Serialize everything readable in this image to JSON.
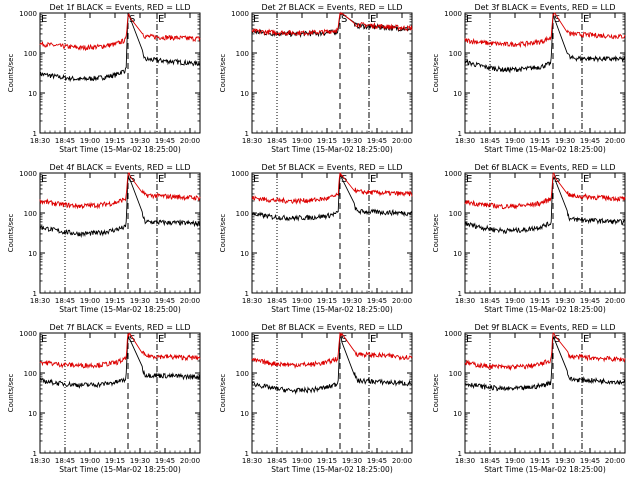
{
  "figure": {
    "background": "#ffffff",
    "colors": {
      "events": "#000000",
      "lld": "#dd0000",
      "axes": "#000000"
    }
  },
  "chart_data": {
    "type": "line",
    "panel_type": "line",
    "yscale": "log",
    "ylim": [
      1,
      1000
    ],
    "yticks": [
      "1",
      "10",
      "100",
      "1000"
    ],
    "xlim": [
      18.5,
      20.1
    ],
    "xticks": [
      18.5,
      18.75,
      19.0,
      19.25,
      19.5,
      19.75,
      20.0
    ],
    "xtick_labels": [
      "18:30",
      "18:45",
      "19:00",
      "19:15",
      "19:30",
      "19:45",
      "20:00"
    ],
    "xlabel": "Start Time (15-Mar-02 18:25:00)",
    "ylabel": "Counts/sec",
    "markers": [
      {
        "label": "E",
        "x": 18.5,
        "style": "dotted"
      },
      {
        "label": "",
        "x": 18.75,
        "style": "dotted"
      },
      {
        "label": "S",
        "x": 19.38,
        "style": "dashed"
      },
      {
        "label": "E",
        "x": 19.67,
        "style": "dashdot"
      }
    ],
    "legend_note": "BLACK = Events, RED = LLD",
    "panels": [
      {
        "title": "Det 1f BLACK = Events, RED = LLD",
        "series": [
          {
            "name": "Events",
            "color": "#000000",
            "levels": [
              30,
              25,
              22,
              24,
              28,
              38,
              900,
              70,
              55
            ]
          },
          {
            "name": "LLD",
            "color": "#dd0000",
            "levels": [
              170,
              150,
              135,
              145,
              165,
              215,
              1000,
              260,
              230
            ]
          }
        ]
      },
      {
        "title": "Det 2f BLACK = Events, RED = LLD",
        "series": [
          {
            "name": "Events",
            "color": "#000000",
            "levels": [
              340,
              310,
              300,
              305,
              320,
              350,
              1000,
              480,
              400
            ]
          },
          {
            "name": "LLD",
            "color": "#dd0000",
            "levels": [
              350,
              330,
              320,
              325,
              340,
              380,
              1000,
              520,
              420
            ]
          }
        ]
      },
      {
        "title": "Det 3f BLACK = Events, RED = LLD",
        "series": [
          {
            "name": "Events",
            "color": "#000000",
            "levels": [
              60,
              45,
              38,
              40,
              45,
              55,
              900,
              75,
              70
            ]
          },
          {
            "name": "LLD",
            "color": "#dd0000",
            "levels": [
              210,
              180,
              165,
              170,
              190,
              240,
              1000,
              300,
              260
            ]
          }
        ]
      },
      {
        "title": "Det 4f BLACK = Events, RED = LLD",
        "series": [
          {
            "name": "Events",
            "color": "#000000",
            "levels": [
              45,
              35,
              30,
              32,
              38,
              45,
              900,
              60,
              55
            ]
          },
          {
            "name": "LLD",
            "color": "#dd0000",
            "levels": [
              200,
              165,
              150,
              160,
              180,
              230,
              1000,
              280,
              240
            ]
          }
        ]
      },
      {
        "title": "Det 5f BLACK = Events, RED = LLD",
        "series": [
          {
            "name": "Events",
            "color": "#000000",
            "levels": [
              95,
              80,
              75,
              78,
              85,
              100,
              900,
              110,
              100
            ]
          },
          {
            "name": "LLD",
            "color": "#dd0000",
            "levels": [
              240,
              210,
              200,
              210,
              230,
              280,
              1000,
              340,
              300
            ]
          }
        ]
      },
      {
        "title": "Det 6f BLACK = Events, RED = LLD",
        "series": [
          {
            "name": "Events",
            "color": "#000000",
            "levels": [
              55,
              42,
              36,
              38,
              45,
              55,
              900,
              70,
              60
            ]
          },
          {
            "name": "LLD",
            "color": "#dd0000",
            "levels": [
              190,
              160,
              145,
              155,
              175,
              225,
              1000,
              270,
              230
            ]
          }
        ]
      },
      {
        "title": "Det 7f BLACK = Events, RED = LLD",
        "series": [
          {
            "name": "Events",
            "color": "#000000",
            "levels": [
              65,
              55,
              50,
              52,
              58,
              70,
              900,
              90,
              80
            ]
          },
          {
            "name": "LLD",
            "color": "#dd0000",
            "levels": [
              190,
              165,
              155,
              160,
              180,
              225,
              1000,
              270,
              240
            ]
          }
        ]
      },
      {
        "title": "Det 8f BLACK = Events, RED = LLD",
        "series": [
          {
            "name": "Events",
            "color": "#000000",
            "levels": [
              55,
              42,
              36,
              38,
              44,
              55,
              900,
              65,
              55
            ]
          },
          {
            "name": "LLD",
            "color": "#dd0000",
            "levels": [
              210,
              175,
              160,
              165,
              185,
              235,
              1000,
              300,
              250
            ]
          }
        ]
      },
      {
        "title": "Det 9f BLACK = Events, RED = LLD",
        "series": [
          {
            "name": "Events",
            "color": "#000000",
            "levels": [
              55,
              45,
              40,
              42,
              48,
              58,
              900,
              70,
              60
            ]
          },
          {
            "name": "LLD",
            "color": "#dd0000",
            "levels": [
              180,
              150,
              140,
              145,
              165,
              210,
              1000,
              260,
              220
            ]
          }
        ]
      }
    ],
    "level_times": [
      18.5,
      18.7,
      18.9,
      19.1,
      19.25,
      19.36,
      19.38,
      19.55,
      20.05
    ]
  }
}
